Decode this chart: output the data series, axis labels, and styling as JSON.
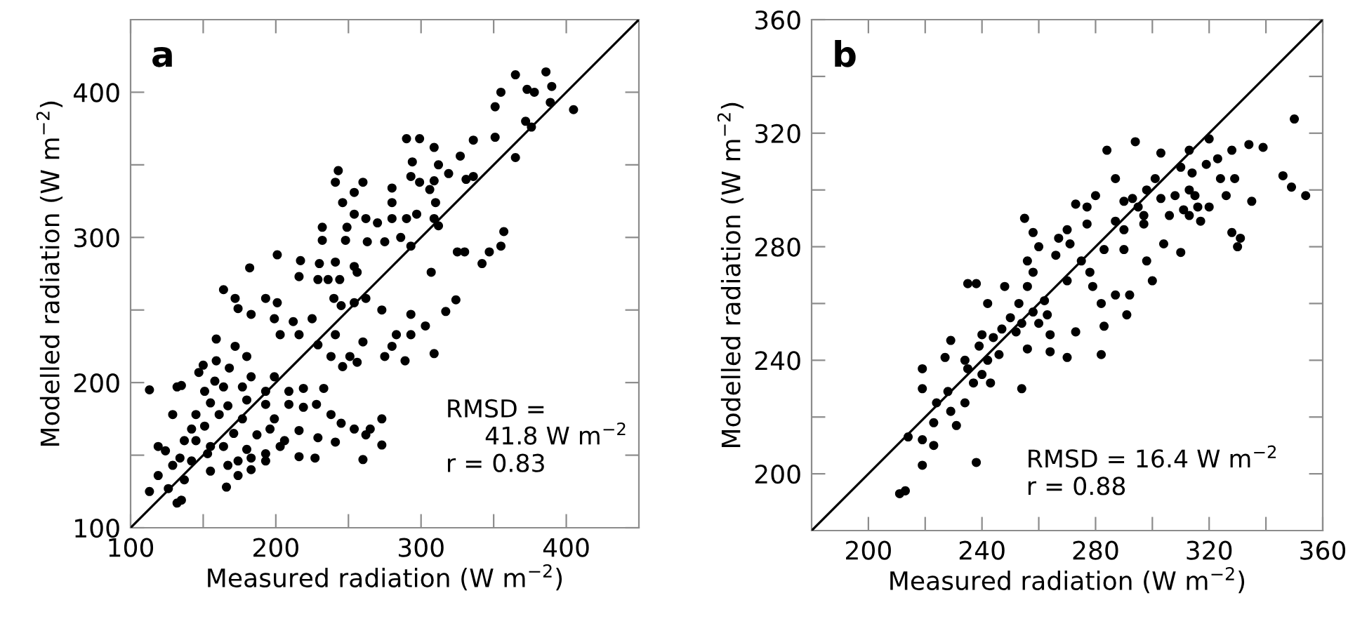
{
  "chart_data": [
    {
      "type": "scatter",
      "title": "a",
      "xlabel": "Measured radiation (W m$^{−2}$)",
      "ylabel": "Modelled radiation (W m$^{−2}$)",
      "annotations": [
        "RMSD =\n     41.8 W m$^{−2}$\nr = 0.83"
      ],
      "xlim": [
        100,
        450
      ],
      "ylim": [
        100,
        450
      ],
      "xticks": [
        100,
        {
          "value": 150,
          "label": null
        },
        200,
        {
          "value": 250,
          "label": null
        },
        300,
        {
          "value": 350,
          "label": null
        },
        400
      ],
      "yticks": [
        100,
        {
          "value": 150,
          "label": null
        },
        200,
        {
          "value": 250,
          "label": null
        },
        300,
        {
          "value": 350,
          "label": null
        },
        400
      ],
      "grid": false,
      "series": [
        {
          "color": "#000000",
          "marker": "circle",
          "x": [
            355,
            365,
            386,
            390,
            373,
            378,
            389,
            405,
            372,
            376,
            351,
            365,
            351,
            336,
            327,
            290,
            299,
            309,
            312,
            319,
            309,
            336,
            331,
            243,
            241,
            260,
            254,
            246,
            280,
            280,
            293,
            294,
            299,
            306,
            310,
            254,
            262,
            270,
            280,
            290,
            297,
            309,
            312,
            249,
            263,
            275,
            286,
            293,
            232,
            232,
            248,
            201,
            217,
            230,
            241,
            254,
            182,
            216,
            229,
            236,
            244,
            256,
            307,
            325,
            330,
            342,
            347,
            355,
            357,
            164,
            172,
            174,
            193,
            201,
            183,
            199,
            212,
            225,
            240,
            245,
            254,
            262,
            273,
            293,
            303,
            317,
            324,
            159,
            172,
            180,
            203,
            216,
            229,
            241,
            251,
            238,
            283,
            293,
            280,
            275,
            289,
            309,
            260,
            246,
            256,
            147,
            150,
            159,
            168,
            183,
            199,
            158,
            164,
            132,
            135,
            113,
            151,
            177,
            193,
            209,
            219,
            233,
            155,
            167,
            180,
            193,
            209,
            219,
            228,
            238,
            145,
            129,
            161,
            177,
            199,
            245,
            254,
            265,
            273,
            142,
            151,
            171,
            187,
            196,
            206,
            216,
            229,
            241,
            262,
            137,
            145,
            155,
            164,
            180,
            193,
            203,
            216,
            227,
            273,
            119,
            124,
            134,
            142,
            153,
            167,
            174,
            183,
            260,
            119,
            129,
            137,
            155,
            174,
            126,
            132,
            135,
            166,
            113,
            183,
            193
          ],
          "values": [
            400,
            412,
            414,
            404,
            402,
            400,
            393,
            388,
            380,
            376,
            390,
            355,
            369,
            367,
            356,
            368,
            368,
            362,
            350,
            344,
            339,
            342,
            340,
            346,
            338,
            338,
            331,
            324,
            334,
            324,
            342,
            352,
            338,
            333,
            324,
            316,
            313,
            310,
            313,
            313,
            316,
            313,
            308,
            307,
            297,
            297,
            300,
            294,
            307,
            298,
            298,
            288,
            284,
            282,
            283,
            280,
            279,
            273,
            271,
            271,
            271,
            276,
            276,
            290,
            290,
            282,
            290,
            294,
            304,
            264,
            258,
            251,
            258,
            255,
            247,
            244,
            242,
            244,
            258,
            253,
            255,
            258,
            250,
            247,
            239,
            249,
            257,
            230,
            225,
            218,
            233,
            233,
            226,
            233,
            218,
            218,
            233,
            233,
            225,
            218,
            215,
            220,
            228,
            211,
            214,
            207,
            212,
            215,
            210,
            204,
            204,
            201,
            197,
            197,
            198,
            195,
            194,
            197,
            194,
            194,
            196,
            196,
            186,
            184,
            188,
            185,
            185,
            183,
            185,
            178,
            178,
            178,
            178,
            175,
            175,
            172,
            168,
            168,
            175,
            168,
            170,
            165,
            164,
            168,
            160,
            167,
            162,
            159,
            164,
            160,
            160,
            156,
            156,
            154,
            151,
            156,
            149,
            148,
            157,
            156,
            153,
            148,
            146,
            151,
            143,
            146,
            148,
            147,
            136,
            143,
            133,
            139,
            136,
            127,
            117,
            119,
            128,
            125,
            140,
            146
          ]
        },
        {
          "type": "line",
          "color": "#000000",
          "x": [
            100,
            450
          ],
          "values": [
            100,
            450
          ]
        }
      ]
    },
    {
      "type": "scatter",
      "title": "b",
      "xlabel": "Measured radiation (W m$^{−2}$)",
      "ylabel": "Modelled radiation (W m$^{−2}$)",
      "annotations": [
        "RMSD = 16.4 W m$^{−2}$\nr = 0.88"
      ],
      "xlim": [
        180,
        360
      ],
      "ylim": [
        180,
        360
      ],
      "xticks": [
        200,
        {
          "value": 220,
          "label": null
        },
        240,
        {
          "value": 260,
          "label": null
        },
        280,
        {
          "value": 300,
          "label": null
        },
        320,
        {
          "value": 340,
          "label": null
        },
        360
      ],
      "yticks": [
        200,
        {
          "value": 220,
          "label": null
        },
        240,
        {
          "value": 260,
          "label": null
        },
        280,
        {
          "value": 300,
          "label": null
        },
        320,
        {
          "value": 340,
          "label": null
        },
        360
      ],
      "grid": false,
      "series": [
        {
          "color": "#000000",
          "marker": "circle",
          "x": [
            211,
            213,
            219,
            238,
            214,
            219,
            223,
            223,
            219,
            219,
            224,
            228,
            231,
            229,
            234,
            229,
            227,
            234,
            235,
            237,
            239,
            240,
            243,
            242,
            235,
            238,
            240,
            242,
            244,
            247,
            246,
            248,
            250,
            252,
            254,
            254,
            255,
            253,
            256,
            258,
            258,
            258,
            260,
            262,
            263,
            256,
            264,
            270,
            264,
            266,
            267,
            270,
            271,
            273,
            275,
            277,
            278,
            279,
            282,
            283,
            282,
            283,
            284,
            287,
            287,
            287,
            290,
            290,
            292,
            291,
            294,
            295,
            297,
            298,
            300,
            301,
            303,
            303,
            304,
            306,
            310,
            310,
            313,
            313,
            314,
            316,
            317,
            319,
            320,
            323,
            324,
            326,
            328,
            328,
            330,
            331,
            334,
            335,
            339,
            346,
            349,
            350,
            354,
            280,
            273,
            293,
            298,
            308,
            311,
            315,
            320,
            329,
            313,
            297,
            290,
            277,
            270,
            260,
            256
          ],
          "values": [
            193,
            194,
            203,
            204,
            213,
            212,
            210,
            218,
            230,
            237,
            225,
            229,
            217,
            222,
            225,
            247,
            241,
            240,
            237,
            232,
            245,
            235,
            232,
            240,
            267,
            267,
            249,
            260,
            248,
            251,
            242,
            266,
            255,
            250,
            253,
            230,
            290,
            260,
            266,
            257,
            271,
            285,
            253,
            261,
            256,
            244,
            243,
            241,
            249,
            277,
            283,
            268,
            281,
            250,
            275,
            288,
            271,
            266,
            242,
            252,
            260,
            279,
            314,
            304,
            289,
            263,
            286,
            279,
            263,
            256,
            317,
            294,
            288,
            275,
            268,
            304,
            313,
            297,
            281,
            291,
            308,
            278,
            314,
            300,
            306,
            294,
            289,
            309,
            318,
            311,
            304,
            298,
            314,
            285,
            280,
            283,
            316,
            296,
            315,
            305,
            301,
            325,
            298,
            298,
            295,
            297,
            300,
            298,
            293,
            298,
            294,
            304,
            291,
            291,
            296,
            294,
            286,
            280,
            275
          ]
        },
        {
          "type": "line",
          "color": "#000000",
          "x": [
            180,
            360
          ],
          "values": [
            180,
            360
          ]
        }
      ]
    }
  ]
}
